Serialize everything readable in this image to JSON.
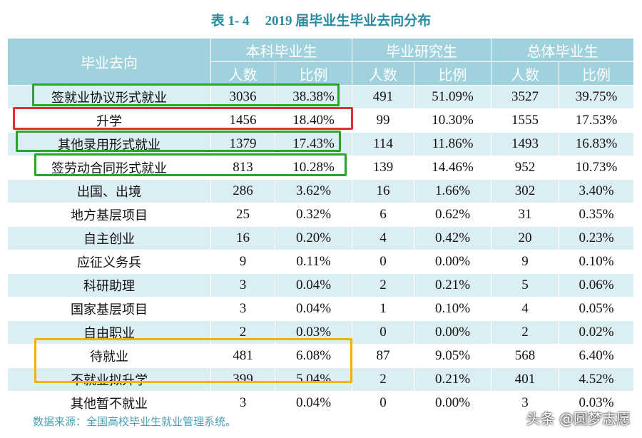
{
  "title": {
    "number": "表 1- 4",
    "text": "2019 届毕业生毕业去向分布"
  },
  "table": {
    "corner": "毕业去向",
    "groups": [
      "本科毕业生",
      "毕业研究生",
      "总体毕业生"
    ],
    "subheaders": [
      "人数",
      "比例",
      "人数",
      "比例",
      "人数",
      "比例"
    ],
    "rows": [
      [
        "签就业协议形式就业",
        3036,
        "38.38%",
        491,
        "51.09%",
        3527,
        "39.75%"
      ],
      [
        "升学",
        1456,
        "18.40%",
        99,
        "10.30%",
        1555,
        "17.53%"
      ],
      [
        "其他录用形式就业",
        1379,
        "17.43%",
        114,
        "11.86%",
        1493,
        "16.83%"
      ],
      [
        "签劳动合同形式就业",
        813,
        "10.28%",
        139,
        "14.46%",
        952,
        "10.73%"
      ],
      [
        "出国、出境",
        286,
        "3.62%",
        16,
        "1.66%",
        302,
        "3.40%"
      ],
      [
        "地方基层项目",
        25,
        "0.32%",
        6,
        "0.62%",
        31,
        "0.35%"
      ],
      [
        "自主创业",
        16,
        "0.20%",
        4,
        "0.42%",
        20,
        "0.23%"
      ],
      [
        "应征义务兵",
        9,
        "0.11%",
        0,
        "0.00%",
        9,
        "0.10%"
      ],
      [
        "科研助理",
        3,
        "0.04%",
        2,
        "0.21%",
        5,
        "0.06%"
      ],
      [
        "国家基层项目",
        3,
        "0.04%",
        1,
        "0.10%",
        4,
        "0.05%"
      ],
      [
        "自由职业",
        2,
        "0.03%",
        0,
        "0.00%",
        2,
        "0.02%"
      ],
      [
        "待就业",
        481,
        "6.08%",
        87,
        "9.05%",
        568,
        "6.40%"
      ],
      [
        "不就业拟升学",
        399,
        "5.04%",
        2,
        "0.21%",
        401,
        "4.52%"
      ],
      [
        "其他暂不就业",
        3,
        "0.04%",
        0,
        "0.00%",
        3,
        "0.03%"
      ]
    ]
  },
  "source": "数据来源：全国高校毕业生就业管理系统。",
  "watermark": "头条 @圆梦志愿"
}
